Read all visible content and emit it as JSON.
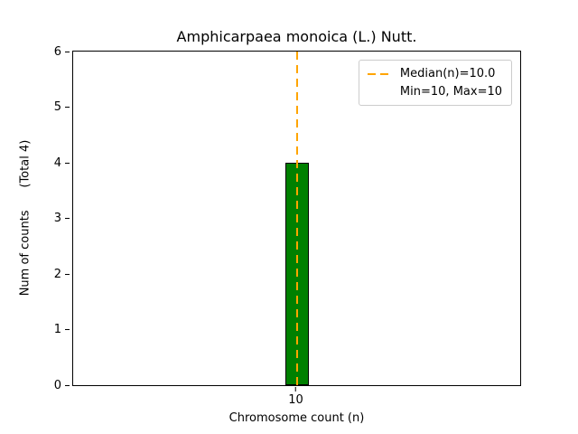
{
  "chart_data": {
    "type": "bar",
    "title": "Amphicarpaea monoica (L.) Nutt.",
    "xlabel": "Chromosome count (n)",
    "ylabel": "Num of counts      (Total 4)",
    "categories": [
      "10"
    ],
    "values": [
      4
    ],
    "ylim": [
      0,
      6
    ],
    "yticks": [
      0,
      1,
      2,
      3,
      4,
      5,
      6
    ],
    "grid": false,
    "bar_color": "#008000",
    "bar_edge_color": "#000000",
    "median_line": {
      "value": 10.0,
      "at_category": "10",
      "color": "#FFA500",
      "style": "dashed"
    },
    "legend": {
      "position": "upper right",
      "entries": [
        "Median(n)=10.0",
        "Min=10, Max=10"
      ]
    },
    "stats": {
      "total": 4,
      "median": 10.0,
      "min": 10,
      "max": 10
    }
  }
}
